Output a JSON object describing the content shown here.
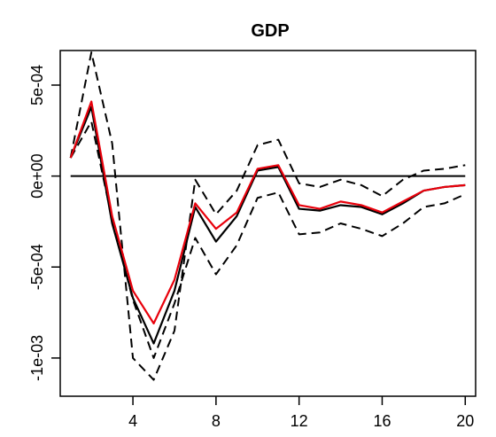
{
  "chart_data": {
    "type": "line",
    "title": "GDP",
    "xlabel": "",
    "ylabel": "",
    "xlim": [
      0.5,
      20.5
    ],
    "ylim": [
      -0.00121,
      0.00069
    ],
    "x_ticks": [
      4,
      8,
      12,
      16,
      20
    ],
    "x_tick_labels": [
      "4",
      "8",
      "12",
      "16",
      "20"
    ],
    "y_ticks": [
      0.0005,
      0,
      -0.0005,
      -0.001
    ],
    "y_tick_labels": [
      "5e-04",
      "0e+00",
      "-5e-04",
      "-1e-03"
    ],
    "grid": false,
    "legend": "none",
    "x": [
      1,
      2,
      3,
      4,
      5,
      6,
      7,
      8,
      9,
      10,
      11,
      12,
      13,
      14,
      15,
      16,
      17,
      18,
      19,
      20
    ],
    "reference_line": {
      "y": 0,
      "color": "#000000"
    },
    "series": [
      {
        "style": "solid",
        "color": "#000000",
        "values": [
          0.0001,
          0.00038,
          -0.00026,
          -0.00067,
          -0.00092,
          -0.00063,
          -0.00017,
          -0.00036,
          -0.00022,
          3e-05,
          5e-05,
          -0.00018,
          -0.00019,
          -0.00016,
          -0.00017,
          -0.00021,
          -0.00015,
          -8e-05,
          -6e-05,
          -5e-05
        ]
      },
      {
        "style": "solid",
        "color": "#e8000b",
        "values": [
          0.0001,
          0.00041,
          -0.00022,
          -0.00063,
          -0.00081,
          -0.00057,
          -0.00015,
          -0.00029,
          -0.0002,
          4e-05,
          6e-05,
          -0.00016,
          -0.00018,
          -0.00014,
          -0.00016,
          -0.0002,
          -0.00014,
          -8e-05,
          -6e-05,
          -5e-05
        ]
      },
      {
        "style": "dashed",
        "color": "#000000",
        "values": [
          0.0001,
          0.00068,
          0.00018,
          -0.001,
          -0.00112,
          -0.00085,
          -2e-05,
          -0.00021,
          -8e-05,
          0.00017,
          0.0002,
          -4e-05,
          -6e-05,
          -2e-05,
          -5e-05,
          -0.00011,
          -2e-05,
          3e-05,
          4e-05,
          6e-05
        ]
      },
      {
        "style": "dashed",
        "color": "#000000",
        "values": [
          0.0001,
          0.0003,
          -0.00024,
          -0.00068,
          -0.001,
          -0.0007,
          -0.00034,
          -0.00054,
          -0.00038,
          -0.00012,
          -9e-05,
          -0.00032,
          -0.00031,
          -0.00026,
          -0.00029,
          -0.00033,
          -0.00026,
          -0.00017,
          -0.00015,
          -0.0001
        ]
      }
    ]
  }
}
